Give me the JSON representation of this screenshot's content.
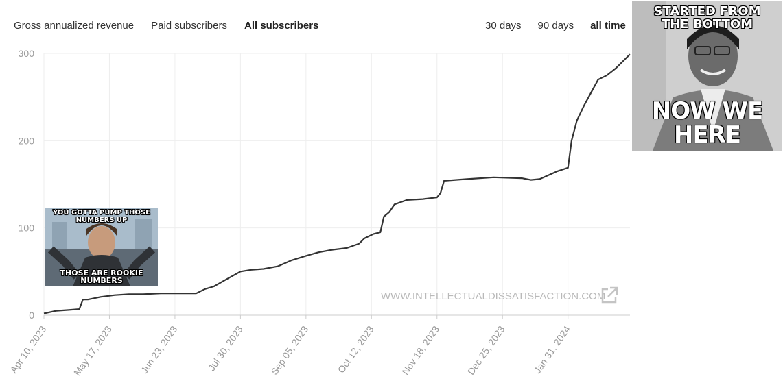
{
  "tabs": [
    {
      "label": "Gross annualized revenue",
      "active": false
    },
    {
      "label": "Paid subscribers",
      "active": false
    },
    {
      "label": "All subscribers",
      "active": true
    }
  ],
  "ranges": [
    {
      "label": "30 days",
      "active": false
    },
    {
      "label": "90 days",
      "active": false
    },
    {
      "label": "all time",
      "active": true
    }
  ],
  "watermark": "WWW.INTELLECTUALDISSATISFACTION.COM",
  "icons": {
    "external_link": "external-link-icon"
  },
  "colors": {
    "line": "#333333",
    "grid": "#eeeeee",
    "axis_text": "#999999"
  },
  "memes": {
    "left": {
      "top_text": "YOU GOTTA PUMP THOSE NUMBERS UP",
      "bottom_text": "THOSE ARE ROOKIE NUMBERS"
    },
    "right": {
      "top_text": "STARTED FROM THE BOTTOM",
      "bottom_text": "NOW WE HERE"
    }
  },
  "chart_data": {
    "type": "line",
    "title": "",
    "xlabel": "",
    "ylabel": "",
    "ylim": [
      0,
      300
    ],
    "yticks": [
      0,
      100,
      200,
      300
    ],
    "xticks": [
      "Apr 10, 2023",
      "May 17, 2023",
      "Jun 23, 2023",
      "Jul 30, 2023",
      "Sep 05, 2023",
      "Oct 12, 2023",
      "Nov 18, 2023",
      "Dec 25, 2023",
      "Jan 31, 2024"
    ],
    "grid": true,
    "series": [
      {
        "x": [
          "2023-04-10",
          "2023-04-17",
          "2023-04-24",
          "2023-04-30",
          "2023-05-02",
          "2023-05-05",
          "2023-05-12",
          "2023-05-20",
          "2023-05-28",
          "2023-06-05",
          "2023-06-15",
          "2023-06-25",
          "2023-07-05",
          "2023-07-10",
          "2023-07-15",
          "2023-07-22",
          "2023-07-30",
          "2023-08-05",
          "2023-08-12",
          "2023-08-20",
          "2023-08-28",
          "2023-09-05",
          "2023-09-12",
          "2023-09-20",
          "2023-09-28",
          "2023-10-05",
          "2023-10-08",
          "2023-10-13",
          "2023-10-17",
          "2023-10-19",
          "2023-10-22",
          "2023-10-25",
          "2023-11-01",
          "2023-11-10",
          "2023-11-18",
          "2023-11-20",
          "2023-11-22",
          "2023-12-05",
          "2023-12-20",
          "2024-01-05",
          "2024-01-10",
          "2024-01-15",
          "2024-01-25",
          "2024-01-31",
          "2024-02-02",
          "2024-02-05",
          "2024-02-09",
          "2024-02-13",
          "2024-02-17",
          "2024-02-22",
          "2024-02-27",
          "2024-03-04",
          "2024-03-06"
        ],
        "values": [
          2,
          5,
          6,
          7,
          18,
          18,
          21,
          23,
          24,
          24,
          25,
          25,
          25,
          30,
          33,
          41,
          50,
          52,
          53,
          56,
          63,
          68,
          72,
          75,
          77,
          82,
          88,
          93,
          95,
          113,
          118,
          127,
          132,
          133,
          135,
          140,
          154,
          156,
          158,
          157,
          155,
          156,
          165,
          169,
          200,
          223,
          240,
          255,
          270,
          275,
          283,
          295,
          299
        ]
      }
    ]
  }
}
